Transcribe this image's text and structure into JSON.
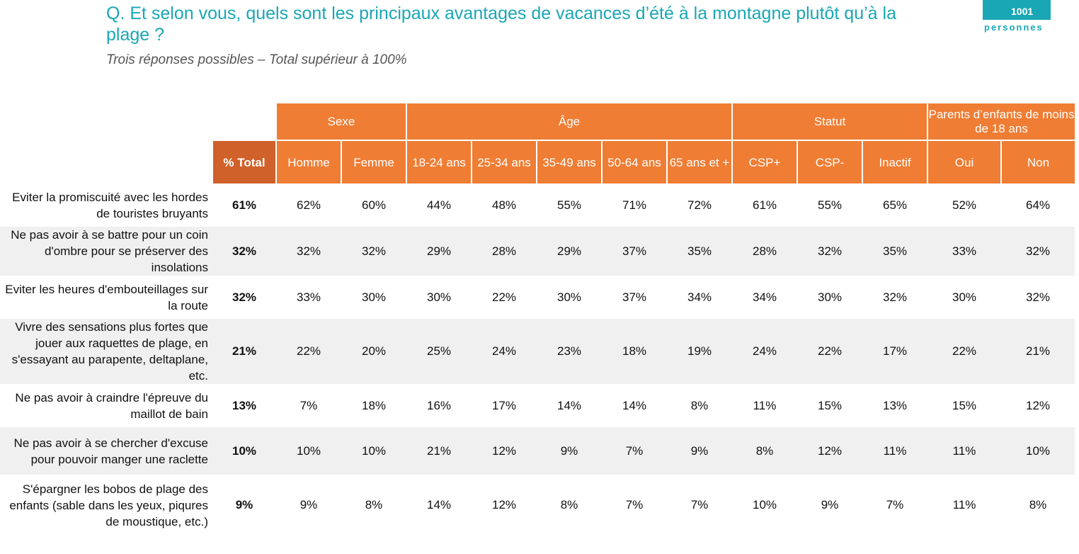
{
  "header": {
    "question": "Q. Et selon vous, quels sont les principaux avantages de vacances d’été à la montagne plutôt qu’à la plage ?",
    "subtitle": "Trois réponses possibles – Total supérieur à 100%",
    "badge_number": "1001",
    "badge_label": "personnes"
  },
  "colors": {
    "title": "#1aa7b5",
    "header_orange": "#ef7d34",
    "total_header": "#d0612a",
    "stripe": "#f0f0f0"
  },
  "table": {
    "groups": [
      {
        "label": "Sexe"
      },
      {
        "label": "Âge"
      },
      {
        "label": "Statut"
      },
      {
        "label": "Parents d’enfants de moins de 18 ans"
      }
    ],
    "columns": [
      "% Total",
      "Homme",
      "Femme",
      "18-24 ans",
      "25-34 ans",
      "35-49 ans",
      "50-64 ans",
      "65 ans et +",
      "CSP+",
      "CSP-",
      "Inactif",
      "Oui",
      "Non"
    ],
    "rows": [
      {
        "label": "Eviter la promiscuité avec les hordes de touristes bruyants",
        "values": [
          "61%",
          "62%",
          "60%",
          "44%",
          "48%",
          "55%",
          "71%",
          "72%",
          "61%",
          "55%",
          "65%",
          "52%",
          "64%"
        ]
      },
      {
        "label": "Ne pas avoir à se battre pour un coin d'ombre pour se préserver des insolations",
        "values": [
          "32%",
          "32%",
          "32%",
          "29%",
          "28%",
          "29%",
          "37%",
          "35%",
          "28%",
          "32%",
          "35%",
          "33%",
          "32%"
        ]
      },
      {
        "label": "Eviter les heures d'embouteillages sur la route",
        "values": [
          "32%",
          "33%",
          "30%",
          "30%",
          "22%",
          "30%",
          "37%",
          "34%",
          "34%",
          "30%",
          "32%",
          "30%",
          "32%"
        ]
      },
      {
        "label": "Vivre des sensations plus fortes que jouer aux raquettes de plage, en s'essayant au parapente, deltaplane, etc.",
        "values": [
          "21%",
          "22%",
          "20%",
          "25%",
          "24%",
          "23%",
          "18%",
          "19%",
          "24%",
          "22%",
          "17%",
          "22%",
          "21%"
        ]
      },
      {
        "label": "Ne pas avoir à craindre l'épreuve du maillot de bain",
        "values": [
          "13%",
          "7%",
          "18%",
          "16%",
          "17%",
          "14%",
          "14%",
          "8%",
          "11%",
          "15%",
          "13%",
          "15%",
          "12%"
        ]
      },
      {
        "label": "Ne pas avoir à se chercher d'excuse pour pouvoir manger une raclette",
        "values": [
          "10%",
          "10%",
          "10%",
          "21%",
          "12%",
          "9%",
          "7%",
          "9%",
          "8%",
          "12%",
          "11%",
          "11%",
          "10%"
        ]
      },
      {
        "label": "S'épargner les bobos de plage des enfants (sable dans les yeux, piqures de moustique, etc.)",
        "values": [
          "9%",
          "9%",
          "8%",
          "14%",
          "12%",
          "8%",
          "7%",
          "7%",
          "10%",
          "9%",
          "7%",
          "11%",
          "8%"
        ]
      }
    ]
  }
}
